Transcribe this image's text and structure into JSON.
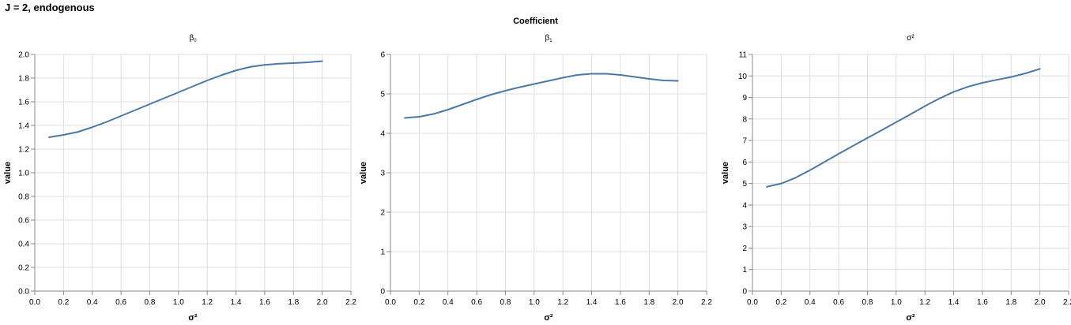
{
  "title": "J = 2, endogenous",
  "facet_header": "Coefficient",
  "colors": {
    "line": "#4c78a8",
    "grid": "#dddddd",
    "axis": "#888888",
    "text": "#000000"
  },
  "chart_data": [
    {
      "type": "line",
      "facet_label": "β",
      "facet_sub": "0",
      "xlabel": "σ²",
      "ylabel": "value",
      "xlim": [
        0,
        2.2
      ],
      "ylim": [
        0,
        2
      ],
      "xticks": [
        "0.0",
        "0.2",
        "0.4",
        "0.6",
        "0.8",
        "1.0",
        "1.2",
        "1.4",
        "1.6",
        "1.8",
        "2.0",
        "2.2"
      ],
      "yticks": [
        "0.0",
        "0.2",
        "0.4",
        "0.6",
        "0.8",
        "1.0",
        "1.2",
        "1.4",
        "1.6",
        "1.8",
        "2.0"
      ],
      "grid": true,
      "x": [
        0.1,
        0.2,
        0.3,
        0.4,
        0.5,
        0.6,
        0.7,
        0.8,
        0.9,
        1.0,
        1.1,
        1.2,
        1.3,
        1.4,
        1.5,
        1.6,
        1.7,
        1.8,
        1.9,
        2.0
      ],
      "values": [
        1.3,
        1.32,
        1.345,
        1.385,
        1.43,
        1.48,
        1.53,
        1.58,
        1.63,
        1.68,
        1.73,
        1.78,
        1.825,
        1.865,
        1.895,
        1.912,
        1.922,
        1.927,
        1.933,
        1.943
      ]
    },
    {
      "type": "line",
      "facet_label": "β",
      "facet_sub": "1",
      "xlabel": "σ²",
      "ylabel": "value",
      "xlim": [
        0,
        2.2
      ],
      "ylim": [
        0,
        6
      ],
      "xticks": [
        "0.0",
        "0.2",
        "0.4",
        "0.6",
        "0.8",
        "1.0",
        "1.2",
        "1.4",
        "1.6",
        "1.8",
        "2.0",
        "2.2"
      ],
      "yticks": [
        "0",
        "1",
        "2",
        "3",
        "4",
        "5",
        "6"
      ],
      "grid": true,
      "x": [
        0.1,
        0.2,
        0.3,
        0.4,
        0.5,
        0.6,
        0.7,
        0.8,
        0.9,
        1.0,
        1.1,
        1.2,
        1.3,
        1.4,
        1.5,
        1.6,
        1.7,
        1.8,
        1.9,
        2.0
      ],
      "values": [
        4.39,
        4.42,
        4.49,
        4.6,
        4.73,
        4.86,
        4.98,
        5.08,
        5.17,
        5.25,
        5.33,
        5.41,
        5.48,
        5.51,
        5.51,
        5.48,
        5.43,
        5.38,
        5.34,
        5.33
      ]
    },
    {
      "type": "line",
      "facet_label": "σ²",
      "facet_sub": "",
      "xlabel": "σ²",
      "ylabel": "value",
      "xlim": [
        0,
        2.2
      ],
      "ylim": [
        0,
        11
      ],
      "xticks": [
        "0.0",
        "0.2",
        "0.4",
        "0.6",
        "0.8",
        "1.0",
        "1.2",
        "1.4",
        "1.6",
        "1.8",
        "2.0",
        "2.2"
      ],
      "yticks": [
        "0",
        "1",
        "2",
        "3",
        "4",
        "5",
        "6",
        "7",
        "8",
        "9",
        "10",
        "11"
      ],
      "grid": true,
      "x": [
        0.1,
        0.2,
        0.3,
        0.4,
        0.5,
        0.6,
        0.7,
        0.8,
        0.9,
        1.0,
        1.1,
        1.2,
        1.3,
        1.4,
        1.5,
        1.6,
        1.7,
        1.8,
        1.9,
        2.0
      ],
      "values": [
        4.85,
        5.0,
        5.27,
        5.62,
        6.0,
        6.38,
        6.75,
        7.12,
        7.48,
        7.85,
        8.22,
        8.6,
        8.95,
        9.26,
        9.5,
        9.68,
        9.82,
        9.95,
        10.12,
        10.33
      ]
    }
  ]
}
